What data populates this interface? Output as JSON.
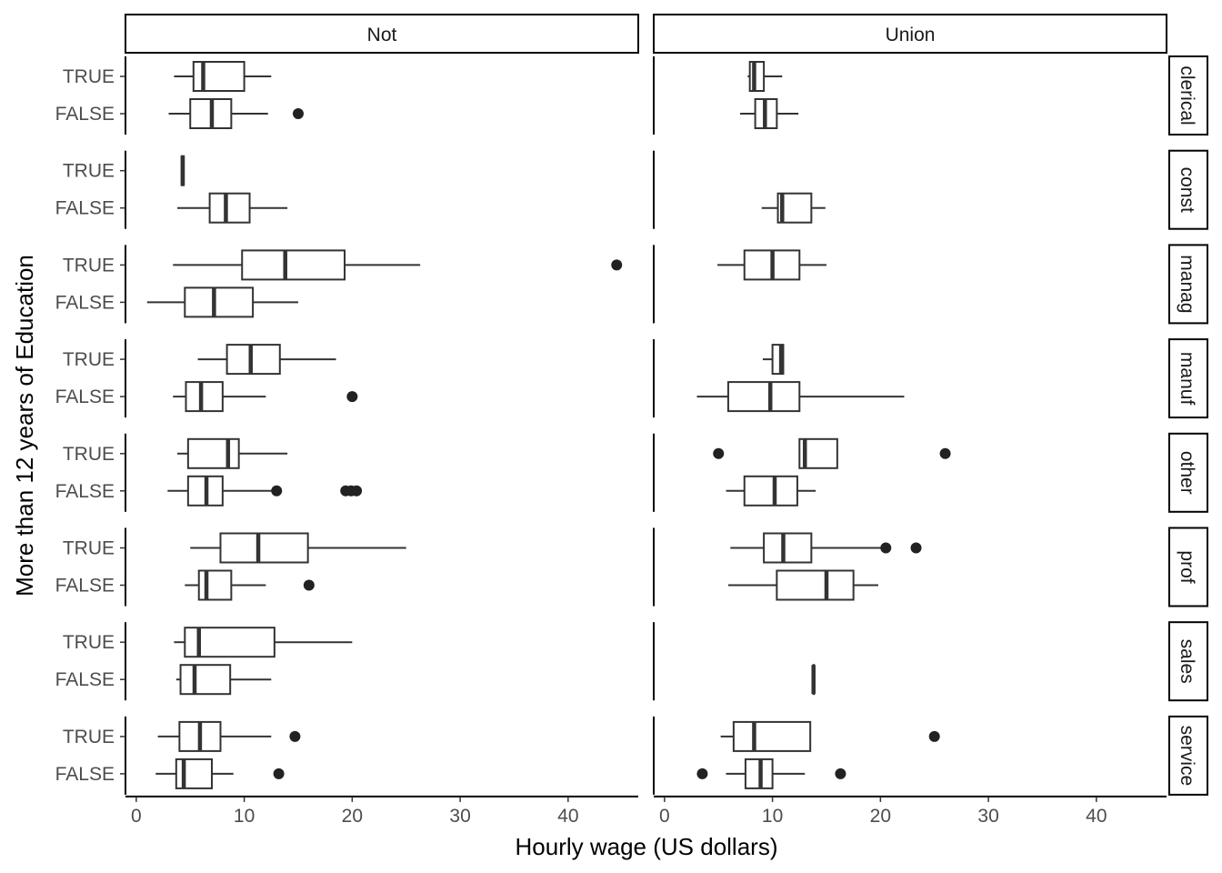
{
  "chart_data": {
    "type": "boxplot",
    "orientation": "horizontal",
    "xlabel": "Hourly wage (US dollars)",
    "ylabel": "More than 12 years of Education",
    "xlim": [
      -1,
      46.5
    ],
    "x_ticks": [
      0,
      10,
      20,
      30,
      40
    ],
    "y_categories": [
      "TRUE",
      "FALSE"
    ],
    "column_facets": [
      "Not",
      "Union"
    ],
    "row_facets": [
      "clerical",
      "const",
      "manag",
      "manuf",
      "other",
      "prof",
      "sales",
      "service"
    ],
    "grid": false,
    "boxes": [
      {
        "col": "Not",
        "row": "clerical",
        "cat": "TRUE",
        "lw": 3.5,
        "q1": 5.3,
        "med": 6.2,
        "q3": 10.0,
        "uw": 12.5,
        "outliers": []
      },
      {
        "col": "Not",
        "row": "clerical",
        "cat": "FALSE",
        "lw": 3.0,
        "q1": 5.0,
        "med": 7.0,
        "q3": 8.8,
        "uw": 12.2,
        "outliers": [
          15.0
        ]
      },
      {
        "col": "Not",
        "row": "const",
        "cat": "TRUE",
        "lw": 4.2,
        "q1": 4.2,
        "med": 4.3,
        "q3": 4.4,
        "uw": 4.4,
        "outliers": []
      },
      {
        "col": "Not",
        "row": "const",
        "cat": "FALSE",
        "lw": 3.8,
        "q1": 6.8,
        "med": 8.3,
        "q3": 10.5,
        "uw": 14.0,
        "outliers": []
      },
      {
        "col": "Not",
        "row": "manag",
        "cat": "TRUE",
        "lw": 3.4,
        "q1": 9.8,
        "med": 13.8,
        "q3": 19.3,
        "uw": 26.3,
        "outliers": [
          44.5
        ]
      },
      {
        "col": "Not",
        "row": "manag",
        "cat": "FALSE",
        "lw": 1.0,
        "q1": 4.5,
        "med": 7.2,
        "q3": 10.8,
        "uw": 15.0,
        "outliers": []
      },
      {
        "col": "Not",
        "row": "manuf",
        "cat": "TRUE",
        "lw": 5.7,
        "q1": 8.4,
        "med": 10.6,
        "q3": 13.3,
        "uw": 18.5,
        "outliers": []
      },
      {
        "col": "Not",
        "row": "manuf",
        "cat": "FALSE",
        "lw": 3.4,
        "q1": 4.6,
        "med": 6.0,
        "q3": 8.0,
        "uw": 12.0,
        "outliers": [
          20.0
        ]
      },
      {
        "col": "Not",
        "row": "other",
        "cat": "TRUE",
        "lw": 3.8,
        "q1": 4.8,
        "med": 8.5,
        "q3": 9.5,
        "uw": 14.0,
        "outliers": []
      },
      {
        "col": "Not",
        "row": "other",
        "cat": "FALSE",
        "lw": 2.9,
        "q1": 4.8,
        "med": 6.5,
        "q3": 8.0,
        "uw": 13.0,
        "outliers": [
          13.0,
          19.4,
          19.9,
          20.4
        ]
      },
      {
        "col": "Not",
        "row": "prof",
        "cat": "TRUE",
        "lw": 5.0,
        "q1": 7.8,
        "med": 11.3,
        "q3": 15.9,
        "uw": 25.0,
        "outliers": []
      },
      {
        "col": "Not",
        "row": "prof",
        "cat": "FALSE",
        "lw": 4.5,
        "q1": 5.8,
        "med": 6.5,
        "q3": 8.8,
        "uw": 12.0,
        "outliers": [
          16.0
        ]
      },
      {
        "col": "Not",
        "row": "sales",
        "cat": "TRUE",
        "lw": 3.5,
        "q1": 4.5,
        "med": 5.8,
        "q3": 12.8,
        "uw": 20.0,
        "outliers": []
      },
      {
        "col": "Not",
        "row": "sales",
        "cat": "FALSE",
        "lw": 3.7,
        "q1": 4.1,
        "med": 5.4,
        "q3": 8.7,
        "uw": 12.5,
        "outliers": []
      },
      {
        "col": "Not",
        "row": "service",
        "cat": "TRUE",
        "lw": 2.0,
        "q1": 4.0,
        "med": 5.9,
        "q3": 7.8,
        "uw": 12.5,
        "outliers": [
          14.7
        ]
      },
      {
        "col": "Not",
        "row": "service",
        "cat": "FALSE",
        "lw": 1.8,
        "q1": 3.7,
        "med": 4.4,
        "q3": 7.0,
        "uw": 9.0,
        "outliers": [
          13.2
        ]
      },
      {
        "col": "Union",
        "row": "clerical",
        "cat": "TRUE",
        "lw": 7.7,
        "q1": 7.9,
        "med": 8.3,
        "q3": 9.2,
        "uw": 10.9,
        "outliers": []
      },
      {
        "col": "Union",
        "row": "clerical",
        "cat": "FALSE",
        "lw": 7.0,
        "q1": 8.4,
        "med": 9.3,
        "q3": 10.4,
        "uw": 12.4,
        "outliers": []
      },
      {
        "col": "Union",
        "row": "const",
        "cat": "FALSE",
        "lw": 9.0,
        "q1": 10.5,
        "med": 10.9,
        "q3": 13.6,
        "uw": 14.9,
        "outliers": []
      },
      {
        "col": "Union",
        "row": "manag",
        "cat": "TRUE",
        "lw": 4.9,
        "q1": 7.4,
        "med": 10.0,
        "q3": 12.5,
        "uw": 15.0,
        "outliers": []
      },
      {
        "col": "Union",
        "row": "manuf",
        "cat": "TRUE",
        "lw": 9.1,
        "q1": 10.0,
        "med": 10.8,
        "q3": 11.0,
        "uw": 11.0,
        "outliers": []
      },
      {
        "col": "Union",
        "row": "manuf",
        "cat": "FALSE",
        "lw": 3.0,
        "q1": 5.9,
        "med": 9.8,
        "q3": 12.5,
        "uw": 22.2,
        "outliers": []
      },
      {
        "col": "Union",
        "row": "other",
        "cat": "TRUE",
        "lw": 12.5,
        "q1": 12.5,
        "med": 13.0,
        "q3": 16.0,
        "uw": 16.0,
        "outliers": [
          5.0,
          26.0
        ]
      },
      {
        "col": "Union",
        "row": "other",
        "cat": "FALSE",
        "lw": 5.7,
        "q1": 7.4,
        "med": 10.2,
        "q3": 12.3,
        "uw": 14.0,
        "outliers": []
      },
      {
        "col": "Union",
        "row": "prof",
        "cat": "TRUE",
        "lw": 6.1,
        "q1": 9.2,
        "med": 11.0,
        "q3": 13.6,
        "uw": 20.5,
        "outliers": [
          20.5,
          23.3
        ]
      },
      {
        "col": "Union",
        "row": "prof",
        "cat": "FALSE",
        "lw": 5.9,
        "q1": 10.4,
        "med": 15.0,
        "q3": 17.5,
        "uw": 19.8,
        "outliers": []
      },
      {
        "col": "Union",
        "row": "sales",
        "cat": "FALSE",
        "lw": 13.7,
        "q1": 13.8,
        "med": 13.8,
        "q3": 13.8,
        "uw": 13.9,
        "outliers": []
      },
      {
        "col": "Union",
        "row": "service",
        "cat": "TRUE",
        "lw": 5.2,
        "q1": 6.4,
        "med": 8.3,
        "q3": 13.5,
        "uw": 13.5,
        "outliers": [
          25.0
        ]
      },
      {
        "col": "Union",
        "row": "service",
        "cat": "FALSE",
        "lw": 5.7,
        "q1": 7.5,
        "med": 8.9,
        "q3": 10.0,
        "uw": 13.0,
        "outliers": [
          3.5,
          16.3
        ]
      }
    ]
  }
}
